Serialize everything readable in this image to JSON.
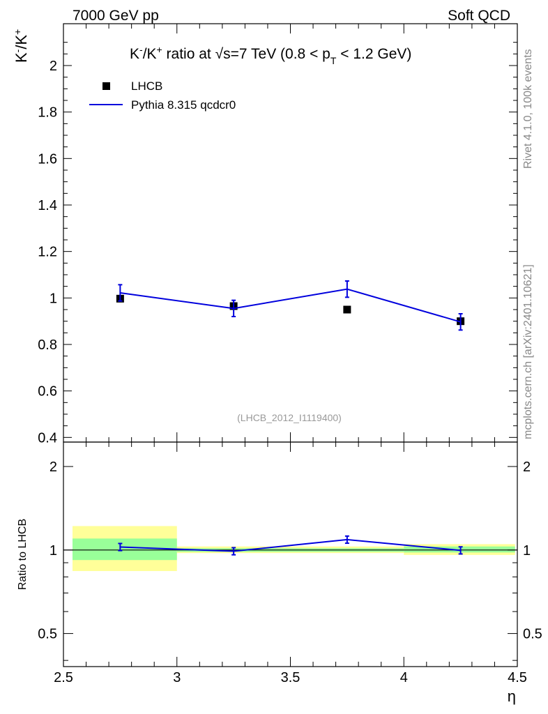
{
  "header": {
    "left": "7000 GeV pp",
    "right": "Soft QCD"
  },
  "side_labels": {
    "rivet": "Rivet 4.1.0,  100k events",
    "mcplots": "mcplots.cern.ch [arXiv:2401.10621]"
  },
  "chart_data": [
    {
      "type": "scatter+line",
      "panel": "main",
      "title": "K⁻/K⁺ ratio at √s=7 TeV (0.8 < p_T < 1.2 GeV)",
      "title_parts": {
        "k1": "K",
        "sup1": "-",
        "slash": "/K",
        "sup2": "+",
        "ratio_at": " ratio at ",
        "sqrt": "√",
        "s_eq": "s=7 TeV (0.8 < p",
        "sub_t": "T",
        "end": " < 1.2 GeV)"
      },
      "ylabel": "K⁻/K⁺",
      "ylabel_parts": {
        "a": "K",
        "sup_a": "-",
        "b": "/K",
        "sup_b": "+"
      },
      "xlabel": "η",
      "xlim": [
        2.5,
        4.5
      ],
      "ylim": [
        0.38,
        2.18
      ],
      "yticks": [
        0.4,
        0.6,
        0.8,
        1,
        1.2,
        1.4,
        1.6,
        1.8,
        2
      ],
      "ytick_labels": [
        "0.4",
        "0.6",
        "0.8",
        "1",
        "1.2",
        "1.4",
        "1.6",
        "1.8",
        "2"
      ],
      "analysis_label": "(LHCB_2012_I1119400)",
      "legend": {
        "position": "top-left",
        "entries": [
          {
            "name": "LHCB",
            "marker": "square",
            "color": "#000000"
          },
          {
            "name": "Pythia 8.315 qcdcr0",
            "marker": "line",
            "color": "#0000dd"
          }
        ]
      },
      "series": [
        {
          "name": "LHCB",
          "x": [
            2.75,
            3.25,
            3.75,
            4.25
          ],
          "y": [
            0.997,
            0.965,
            0.95,
            0.9
          ]
        },
        {
          "name": "Pythia 8.315 qcdcr0",
          "bin_edges": [
            2.5,
            3.0,
            3.5,
            4.0,
            4.5
          ],
          "x": [
            2.75,
            3.25,
            3.75,
            4.25
          ],
          "y": [
            1.022,
            0.955,
            1.038,
            0.897
          ],
          "yerr": [
            0.035,
            0.035,
            0.035,
            0.035
          ]
        }
      ]
    },
    {
      "type": "ratio",
      "panel": "ratio",
      "ylabel": "Ratio to LHCB",
      "xlabel": "η",
      "xlim": [
        2.5,
        4.5
      ],
      "ylim": [
        0.38,
        2.45
      ],
      "scale": "log",
      "yticks": [
        0.5,
        1,
        2
      ],
      "ytick_labels": [
        "0.5",
        "1",
        "2"
      ],
      "xticks": [
        2.5,
        3,
        3.5,
        4,
        4.5
      ],
      "xtick_labels": [
        "2.5",
        "3",
        "3.5",
        "4",
        "4.5"
      ],
      "reference_line": 1,
      "bands": {
        "bin_edges": [
          2.5,
          3.0,
          3.5,
          4.0,
          4.5
        ],
        "band_x_start": 2.54,
        "band_x_end": 4.49,
        "yellow": [
          [
            0.84,
            1.22
          ],
          [
            0.975,
            1.03
          ],
          [
            0.975,
            1.03
          ],
          [
            0.96,
            1.05
          ]
        ],
        "green": [
          [
            0.92,
            1.1
          ],
          [
            0.985,
            1.015
          ],
          [
            0.985,
            1.015
          ],
          [
            0.98,
            1.03
          ]
        ],
        "colors": {
          "yellow": "#ffff99",
          "green": "#99ff99"
        }
      },
      "series": [
        {
          "name": "Pythia 8.315 qcdcr0",
          "x": [
            2.75,
            3.25,
            3.75,
            4.25
          ],
          "y": [
            1.025,
            0.99,
            1.09,
            0.997
          ],
          "yerr": [
            0.035,
            0.035,
            0.035,
            0.035
          ]
        }
      ]
    }
  ]
}
